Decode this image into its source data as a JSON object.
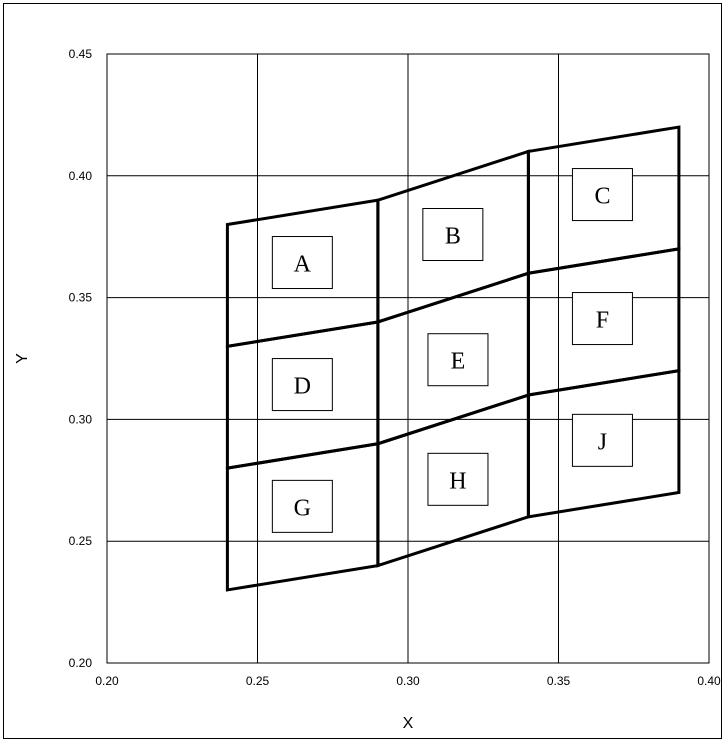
{
  "chart_data": {
    "type": "scatter",
    "title": "",
    "xlabel": "X",
    "ylabel": "Y",
    "xlim": [
      0.2,
      0.4
    ],
    "ylim": [
      0.2,
      0.45
    ],
    "xticks": [
      0.2,
      0.25,
      0.3,
      0.35,
      0.4
    ],
    "yticks": [
      0.2,
      0.25,
      0.3,
      0.35,
      0.4,
      0.45
    ],
    "xtick_labels": [
      "0.20",
      "0.25",
      "0.30",
      "0.35",
      "0.40"
    ],
    "ytick_labels": [
      "0.20",
      "0.25",
      "0.30",
      "0.35",
      "0.40",
      "0.45"
    ],
    "grid": true,
    "line_color": "#000000",
    "regions": [
      {
        "label": "A",
        "polygon": [
          [
            0.24,
            0.38
          ],
          [
            0.29,
            0.39
          ],
          [
            0.29,
            0.34
          ],
          [
            0.24,
            0.33
          ]
        ],
        "label_xy": [
          0.2649,
          0.3644
        ]
      },
      {
        "label": "B",
        "polygon": [
          [
            0.29,
            0.39
          ],
          [
            0.34,
            0.41
          ],
          [
            0.34,
            0.36
          ],
          [
            0.29,
            0.34
          ]
        ],
        "label_xy": [
          0.3149,
          0.3759
        ]
      },
      {
        "label": "C",
        "polygon": [
          [
            0.34,
            0.41
          ],
          [
            0.39,
            0.42
          ],
          [
            0.39,
            0.37
          ],
          [
            0.34,
            0.36
          ]
        ],
        "label_xy": [
          0.3646,
          0.3923
        ]
      },
      {
        "label": "D",
        "polygon": [
          [
            0.24,
            0.33
          ],
          [
            0.29,
            0.34
          ],
          [
            0.29,
            0.29
          ],
          [
            0.24,
            0.28
          ]
        ],
        "label_xy": [
          0.2649,
          0.3143
        ]
      },
      {
        "label": "E",
        "polygon": [
          [
            0.29,
            0.34
          ],
          [
            0.34,
            0.36
          ],
          [
            0.34,
            0.31
          ],
          [
            0.29,
            0.29
          ]
        ],
        "label_xy": [
          0.3166,
          0.3245
        ]
      },
      {
        "label": "F",
        "polygon": [
          [
            0.34,
            0.36
          ],
          [
            0.39,
            0.37
          ],
          [
            0.39,
            0.32
          ],
          [
            0.34,
            0.31
          ]
        ],
        "label_xy": [
          0.3646,
          0.3414
        ]
      },
      {
        "label": "G",
        "polygon": [
          [
            0.24,
            0.28
          ],
          [
            0.29,
            0.29
          ],
          [
            0.29,
            0.24
          ],
          [
            0.24,
            0.23
          ]
        ],
        "label_xy": [
          0.2649,
          0.2643
        ]
      },
      {
        "label": "H",
        "polygon": [
          [
            0.29,
            0.29
          ],
          [
            0.34,
            0.31
          ],
          [
            0.34,
            0.26
          ],
          [
            0.29,
            0.24
          ]
        ],
        "label_xy": [
          0.3166,
          0.2754
        ]
      },
      {
        "label": "J",
        "polygon": [
          [
            0.34,
            0.31
          ],
          [
            0.39,
            0.32
          ],
          [
            0.39,
            0.27
          ],
          [
            0.34,
            0.26
          ]
        ],
        "label_xy": [
          0.3646,
          0.2914
        ]
      }
    ]
  }
}
